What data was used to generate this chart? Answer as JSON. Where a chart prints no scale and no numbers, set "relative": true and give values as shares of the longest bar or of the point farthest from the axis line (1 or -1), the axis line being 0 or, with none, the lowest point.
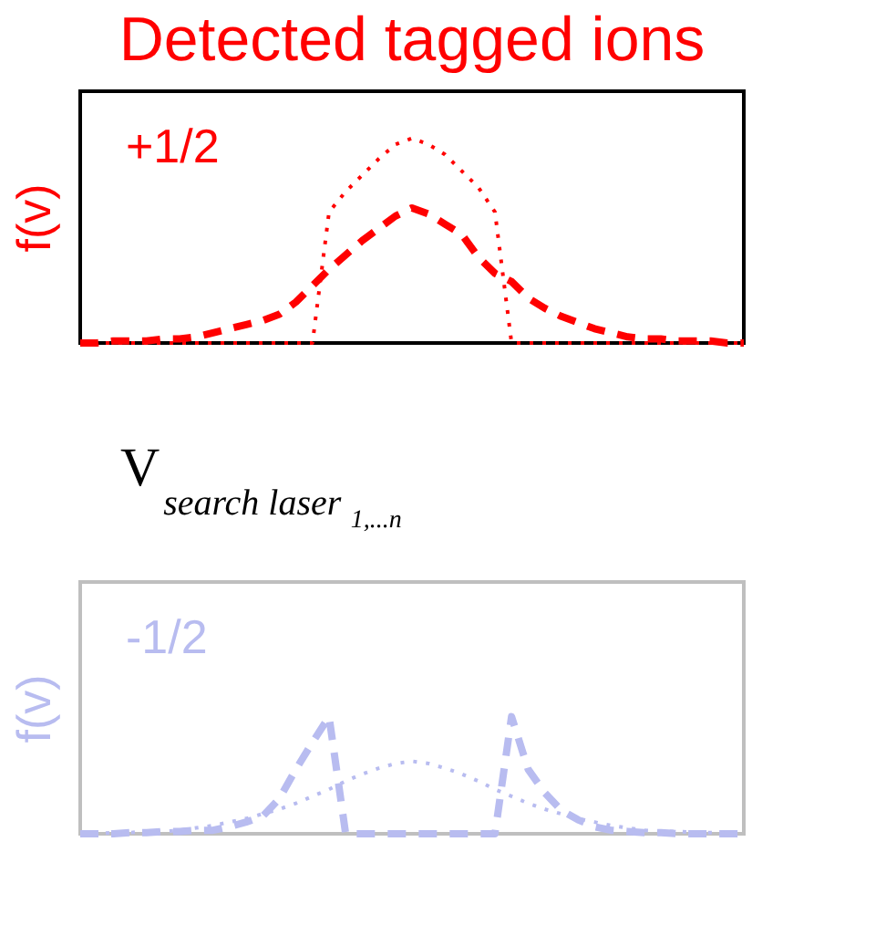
{
  "chart_data": [
    {
      "type": "line",
      "title": "Detected tagged ions",
      "ylabel": "f(v)",
      "xlabel": "V$_{search laser}$$_{1,...n}$",
      "relative": true,
      "tick_labels": false,
      "grid": false,
      "annotations": [
        "+1/2"
      ],
      "categories": [
        null,
        null,
        null,
        null,
        null,
        null,
        null,
        null,
        null,
        null,
        null,
        null,
        null,
        null,
        null,
        null,
        null,
        null,
        null,
        null,
        null,
        null,
        null,
        null,
        null,
        null,
        null,
        null,
        null,
        null,
        null,
        null,
        null,
        null,
        null,
        null,
        null,
        null,
        null,
        null,
        null
      ],
      "series": [
        {
          "color": "#ff0000",
          "line_style": "dotted",
          "values": [
            0,
            0,
            0,
            0,
            0,
            0,
            0,
            0,
            0,
            0,
            0,
            0,
            0,
            0,
            0,
            0.64,
            0.74,
            0.82,
            0.9,
            0.97,
            1,
            0.97,
            0.92,
            0.84,
            0.76,
            0.64,
            0,
            0,
            0,
            0,
            0,
            0,
            0,
            0,
            0,
            0,
            0,
            0,
            0,
            0,
            0
          ]
        },
        {
          "color": "#ff0000",
          "line_style": "dashed",
          "values": [
            0,
            0,
            0.01,
            0.01,
            0.01,
            0.02,
            0.02,
            0.03,
            0.05,
            0.07,
            0.09,
            0.11,
            0.14,
            0.2,
            0.28,
            0.36,
            0.43,
            0.5,
            0.56,
            0.62,
            0.66,
            0.63,
            0.58,
            0.53,
            0.42,
            0.34,
            0.3,
            0.22,
            0.17,
            0.13,
            0.1,
            0.07,
            0.05,
            0.03,
            0.02,
            0.02,
            0.01,
            0.01,
            0.01,
            0,
            0
          ]
        }
      ]
    },
    {
      "type": "line",
      "ylabel": "f(v)",
      "relative": true,
      "tick_labels": false,
      "grid": false,
      "annotations": [
        "-1/2"
      ],
      "categories": [
        null,
        null,
        null,
        null,
        null,
        null,
        null,
        null,
        null,
        null,
        null,
        null,
        null,
        null,
        null,
        null,
        null,
        null,
        null,
        null,
        null,
        null,
        null,
        null,
        null,
        null,
        null,
        null,
        null,
        null,
        null,
        null,
        null,
        null,
        null,
        null,
        null,
        null,
        null,
        null,
        null
      ],
      "series": [
        {
          "color": "#b8bcf0",
          "line_style": "dashed",
          "values": [
            0,
            0,
            0,
            0.01,
            0.01,
            0.02,
            0.02,
            0.03,
            0.03,
            0.06,
            0.1,
            0.15,
            0.3,
            0.55,
            0.78,
            1,
            0,
            0,
            0,
            0,
            0,
            0,
            0,
            0,
            0,
            0,
            1,
            0.55,
            0.35,
            0.2,
            0.12,
            0.06,
            0.03,
            0.02,
            0.01,
            0.01,
            0,
            0,
            0,
            0,
            0
          ]
        },
        {
          "color": "#b8bcf0",
          "line_style": "dotted",
          "values": [
            0,
            0,
            0.01,
            0.01,
            0.02,
            0.02,
            0.03,
            0.05,
            0.07,
            0.1,
            0.13,
            0.17,
            0.21,
            0.26,
            0.32,
            0.38,
            0.45,
            0.51,
            0.56,
            0.6,
            0.62,
            0.6,
            0.56,
            0.51,
            0.45,
            0.38,
            0.32,
            0.26,
            0.21,
            0.17,
            0.13,
            0.1,
            0.07,
            0.05,
            0.03,
            0.02,
            0.02,
            0.01,
            0.01,
            0,
            0
          ]
        }
      ]
    }
  ]
}
